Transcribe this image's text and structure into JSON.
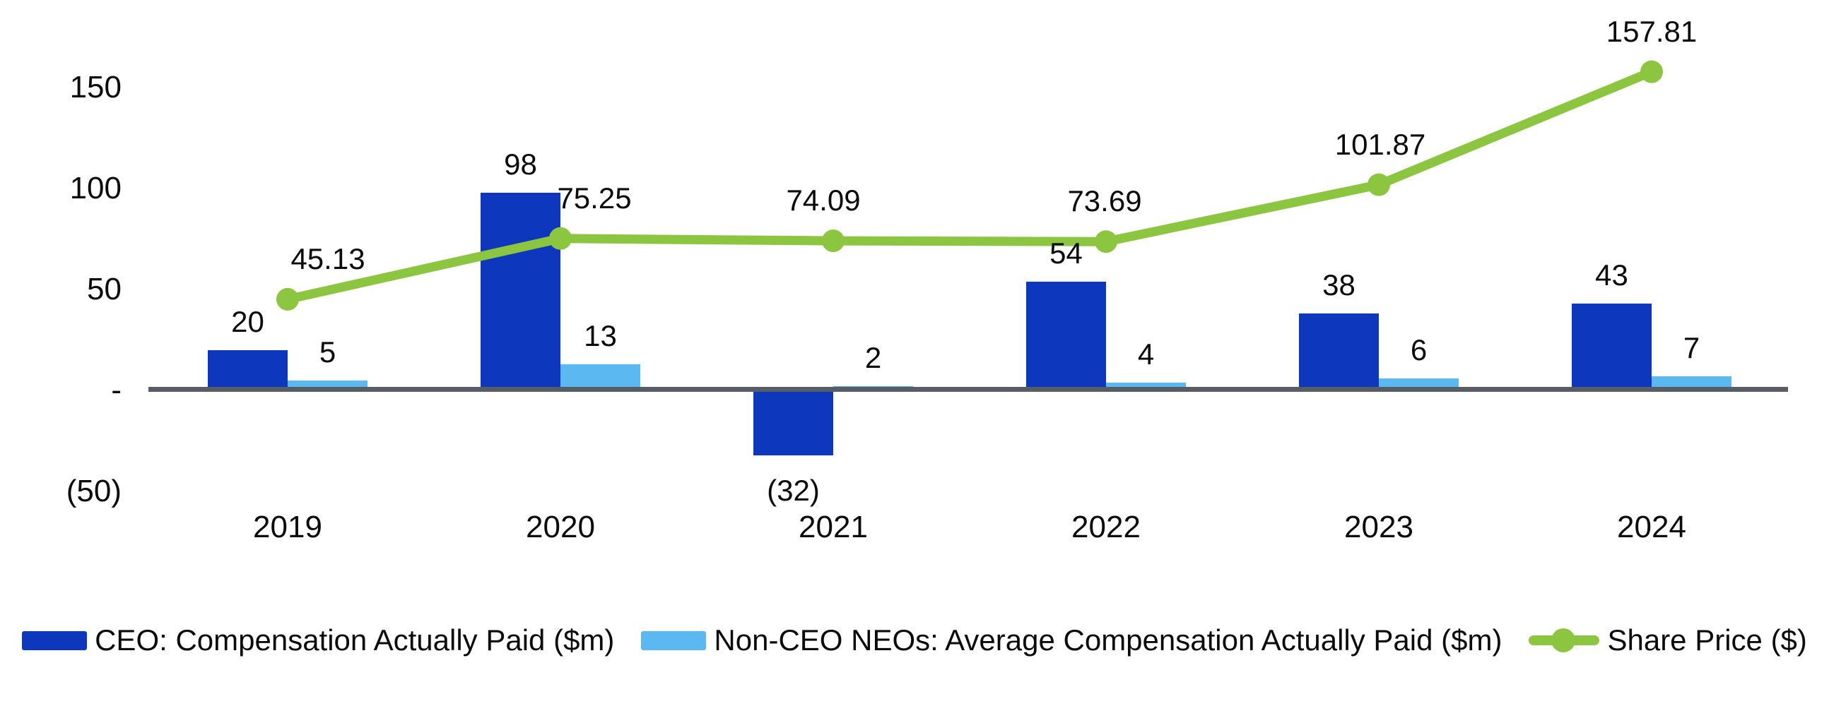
{
  "chart_data": {
    "type": "combo",
    "categories": [
      "2019",
      "2020",
      "2021",
      "2022",
      "2023",
      "2024"
    ],
    "series": [
      {
        "name": "CEO: Compensation Actually Paid ($m)",
        "type": "bar",
        "color": "#0d38bd",
        "values": [
          20,
          98,
          -32,
          54,
          38,
          43
        ],
        "labels": [
          "20",
          "98",
          "(32)",
          "54",
          "38",
          "43"
        ]
      },
      {
        "name": "Non-CEO NEOs: Average Compensation Actually Paid ($m)",
        "type": "bar",
        "color": "#5cb8f0",
        "values": [
          5,
          13,
          2,
          4,
          6,
          7
        ],
        "labels": [
          "5",
          "13",
          "2",
          "4",
          "6",
          "7"
        ]
      },
      {
        "name": "Share Price ($)",
        "type": "line",
        "color": "#8cc540",
        "values": [
          45.13,
          75.25,
          74.09,
          73.69,
          101.87,
          157.81
        ],
        "labels": [
          "45.13",
          "75.25",
          "74.09",
          "73.69",
          "101.87",
          "157.81"
        ],
        "label_dx": [
          57,
          48,
          -14,
          -2,
          2,
          0
        ]
      }
    ],
    "y_axis": {
      "ticks": [
        {
          "label": "150",
          "value": 150
        },
        {
          "label": "100",
          "value": 100
        },
        {
          "label": "50",
          "value": 50
        },
        {
          "label": "-",
          "value": 0
        },
        {
          "label": "(50)",
          "value": -50
        }
      ],
      "min": -50,
      "max": 175,
      "gridlines": false
    },
    "colors": {
      "axis_line": "#565d64",
      "text": "#0b0b0b",
      "background": "#ffffff"
    },
    "legend_position": "bottom"
  }
}
